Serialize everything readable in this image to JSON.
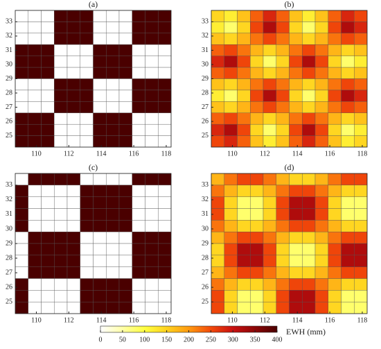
{
  "chart_data": [
    {
      "type": "heatmap",
      "title": "(a)",
      "xlim": [
        108.7,
        118.3
      ],
      "ylim": [
        24.2,
        33.8
      ],
      "xticks": [
        110,
        112,
        114,
        116,
        118
      ],
      "yticks": [
        25,
        26,
        27,
        28,
        29,
        30,
        31,
        32,
        33
      ],
      "z": [
        [
          0,
          0,
          0,
          400,
          400,
          400,
          0,
          0,
          0,
          400,
          400,
          400
        ],
        [
          0,
          0,
          0,
          400,
          400,
          400,
          0,
          0,
          0,
          400,
          400,
          400
        ],
        [
          0,
          0,
          0,
          400,
          400,
          400,
          0,
          0,
          0,
          400,
          400,
          400
        ],
        [
          400,
          400,
          400,
          0,
          0,
          0,
          400,
          400,
          400,
          0,
          0,
          0
        ],
        [
          400,
          400,
          400,
          0,
          0,
          0,
          400,
          400,
          400,
          0,
          0,
          0
        ],
        [
          400,
          400,
          400,
          0,
          0,
          0,
          400,
          400,
          400,
          0,
          0,
          0
        ],
        [
          0,
          0,
          0,
          400,
          400,
          400,
          0,
          0,
          0,
          400,
          400,
          400
        ],
        [
          0,
          0,
          0,
          400,
          400,
          400,
          0,
          0,
          0,
          400,
          400,
          400
        ],
        [
          0,
          0,
          0,
          400,
          400,
          400,
          0,
          0,
          0,
          400,
          400,
          400
        ],
        [
          400,
          400,
          400,
          0,
          0,
          0,
          400,
          400,
          400,
          0,
          0,
          0
        ],
        [
          400,
          400,
          400,
          0,
          0,
          0,
          400,
          400,
          400,
          0,
          0,
          0
        ],
        [
          400,
          400,
          400,
          0,
          0,
          0,
          400,
          400,
          400,
          0,
          0,
          0
        ]
      ]
    },
    {
      "type": "heatmap",
      "title": "(b)",
      "xlim": [
        108.7,
        118.3
      ],
      "ylim": [
        24.2,
        33.8
      ],
      "xticks": [
        110,
        112,
        114,
        116,
        118
      ],
      "yticks": [
        25,
        26,
        27,
        28,
        29,
        30,
        31,
        32,
        33
      ],
      "z": [
        [
          146,
          119,
          164,
          236,
          281,
          236,
          164,
          119,
          164,
          236,
          281,
          254
        ],
        [
          119,
          79,
          146,
          254,
          321,
          254,
          146,
          79,
          146,
          254,
          321,
          281
        ],
        [
          164,
          146,
          176,
          224,
          254,
          224,
          176,
          146,
          176,
          224,
          254,
          236
        ],
        [
          236,
          254,
          224,
          176,
          146,
          176,
          224,
          254,
          224,
          176,
          146,
          164
        ],
        [
          281,
          321,
          254,
          146,
          79,
          146,
          254,
          321,
          254,
          146,
          79,
          119
        ],
        [
          236,
          254,
          224,
          176,
          146,
          176,
          224,
          254,
          224,
          176,
          146,
          164
        ],
        [
          164,
          146,
          176,
          224,
          254,
          224,
          176,
          146,
          176,
          224,
          254,
          236
        ],
        [
          119,
          79,
          146,
          254,
          321,
          254,
          146,
          79,
          146,
          254,
          321,
          281
        ],
        [
          164,
          146,
          176,
          224,
          254,
          224,
          176,
          146,
          176,
          224,
          254,
          236
        ],
        [
          236,
          254,
          224,
          176,
          146,
          176,
          224,
          254,
          224,
          176,
          146,
          164
        ],
        [
          281,
          321,
          254,
          146,
          79,
          146,
          254,
          321,
          254,
          146,
          79,
          119
        ],
        [
          254,
          281,
          236,
          164,
          119,
          164,
          236,
          281,
          236,
          164,
          119,
          146
        ]
      ]
    },
    {
      "type": "heatmap",
      "title": "(c)",
      "xlim": [
        108.7,
        118.3
      ],
      "ylim": [
        24.2,
        33.8
      ],
      "xticks": [
        110,
        112,
        114,
        116,
        118
      ],
      "yticks": [
        25,
        26,
        27,
        28,
        29,
        30,
        31,
        32,
        33
      ],
      "z": [
        [
          0,
          400,
          400,
          400,
          400,
          0,
          0,
          0,
          0,
          400,
          400,
          400
        ],
        [
          400,
          0,
          0,
          0,
          0,
          400,
          400,
          400,
          400,
          0,
          0,
          0
        ],
        [
          400,
          0,
          0,
          0,
          0,
          400,
          400,
          400,
          400,
          0,
          0,
          0
        ],
        [
          400,
          0,
          0,
          0,
          0,
          400,
          400,
          400,
          400,
          0,
          0,
          0
        ],
        [
          400,
          0,
          0,
          0,
          0,
          400,
          400,
          400,
          400,
          0,
          0,
          0
        ],
        [
          0,
          400,
          400,
          400,
          400,
          0,
          0,
          0,
          0,
          400,
          400,
          400
        ],
        [
          0,
          400,
          400,
          400,
          400,
          0,
          0,
          0,
          0,
          400,
          400,
          400
        ],
        [
          0,
          400,
          400,
          400,
          400,
          0,
          0,
          0,
          0,
          400,
          400,
          400
        ],
        [
          0,
          400,
          400,
          400,
          400,
          0,
          0,
          0,
          0,
          400,
          400,
          400
        ],
        [
          400,
          0,
          0,
          0,
          0,
          400,
          400,
          400,
          400,
          0,
          0,
          0
        ],
        [
          400,
          0,
          0,
          0,
          0,
          400,
          400,
          400,
          400,
          0,
          0,
          0
        ],
        [
          400,
          0,
          0,
          0,
          0,
          400,
          400,
          400,
          400,
          0,
          0,
          0
        ]
      ]
    },
    {
      "type": "heatmap",
      "title": "(d)",
      "xlim": [
        108.7,
        118.3
      ],
      "ylim": [
        24.2,
        33.8
      ],
      "xticks": [
        110,
        112,
        114,
        116,
        118
      ],
      "yticks": [
        25,
        26,
        27,
        28,
        29,
        30,
        31,
        32,
        33
      ],
      "z": [
        [
          176,
          224,
          254,
          254,
          224,
          176,
          146,
          146,
          176,
          224,
          254,
          254
        ],
        [
          224,
          176,
          146,
          146,
          176,
          224,
          254,
          254,
          224,
          176,
          146,
          146
        ],
        [
          254,
          146,
          79,
          79,
          146,
          254,
          321,
          321,
          254,
          146,
          79,
          79
        ],
        [
          254,
          146,
          79,
          79,
          146,
          254,
          321,
          321,
          254,
          146,
          79,
          79
        ],
        [
          224,
          176,
          146,
          146,
          176,
          224,
          254,
          254,
          224,
          176,
          146,
          146
        ],
        [
          176,
          224,
          254,
          254,
          224,
          176,
          146,
          146,
          176,
          224,
          254,
          254
        ],
        [
          146,
          254,
          321,
          321,
          254,
          146,
          79,
          79,
          146,
          254,
          321,
          321
        ],
        [
          146,
          254,
          321,
          321,
          254,
          146,
          79,
          79,
          146,
          254,
          321,
          321
        ],
        [
          176,
          224,
          254,
          254,
          224,
          176,
          146,
          146,
          176,
          224,
          254,
          254
        ],
        [
          224,
          176,
          146,
          146,
          176,
          224,
          254,
          254,
          224,
          176,
          146,
          146
        ],
        [
          254,
          146,
          79,
          79,
          146,
          254,
          321,
          321,
          254,
          146,
          79,
          79
        ],
        [
          254,
          146,
          79,
          79,
          146,
          254,
          321,
          321,
          254,
          146,
          79,
          79
        ]
      ]
    }
  ],
  "colorbar": {
    "label": "EWH (mm)",
    "ticks": [
      0,
      50,
      100,
      150,
      200,
      250,
      300,
      350,
      400
    ],
    "colors": [
      "#ffffff",
      "#ffffa8",
      "#ffff40",
      "#ffd21e",
      "#ff9a10",
      "#f24a0a",
      "#c81010",
      "#8c0606",
      "#4a0000"
    ]
  }
}
